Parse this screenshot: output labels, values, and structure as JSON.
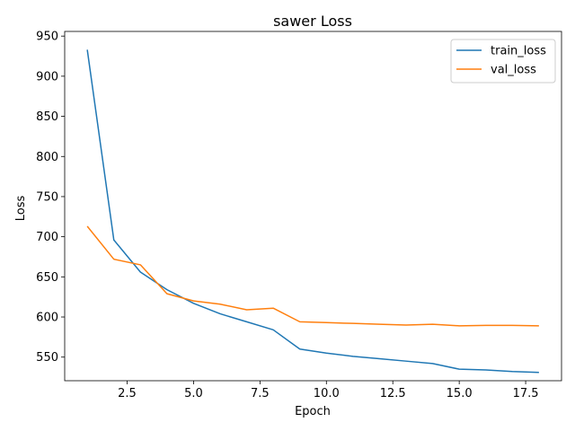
{
  "chart_data": {
    "type": "line",
    "title": "sawer Loss",
    "xlabel": "Epoch",
    "ylabel": "Loss",
    "xlim": [
      0.15,
      18.85
    ],
    "ylim": [
      520.6,
      955.8
    ],
    "x_ticks": [
      2.5,
      5.0,
      7.5,
      10.0,
      12.5,
      15.0,
      17.5
    ],
    "x_tick_labels": [
      "2.5",
      "5.0",
      "7.5",
      "10.0",
      "12.5",
      "15.0",
      "17.5"
    ],
    "y_ticks": [
      550,
      600,
      650,
      700,
      750,
      800,
      850,
      900,
      950
    ],
    "y_tick_labels": [
      "550",
      "600",
      "650",
      "700",
      "750",
      "800",
      "850",
      "900",
      "950"
    ],
    "grid": false,
    "legend_position": "top-right",
    "x": [
      1,
      2,
      3,
      4,
      5,
      6,
      7,
      8,
      9,
      10,
      11,
      12,
      13,
      14,
      15,
      16,
      17,
      18
    ],
    "series": [
      {
        "name": "train_loss",
        "color": "#1f77b4",
        "values": [
          933,
          696,
          656,
          634,
          617,
          604,
          594,
          584,
          560,
          555,
          551,
          548,
          545,
          542,
          535,
          534,
          532,
          531
        ]
      },
      {
        "name": "val_loss",
        "color": "#ff7f0e",
        "values": [
          713,
          672,
          665,
          629,
          620,
          616,
          609,
          611,
          594,
          593,
          592,
          591,
          590,
          591,
          589,
          589.5,
          589.5,
          589
        ]
      }
    ]
  }
}
